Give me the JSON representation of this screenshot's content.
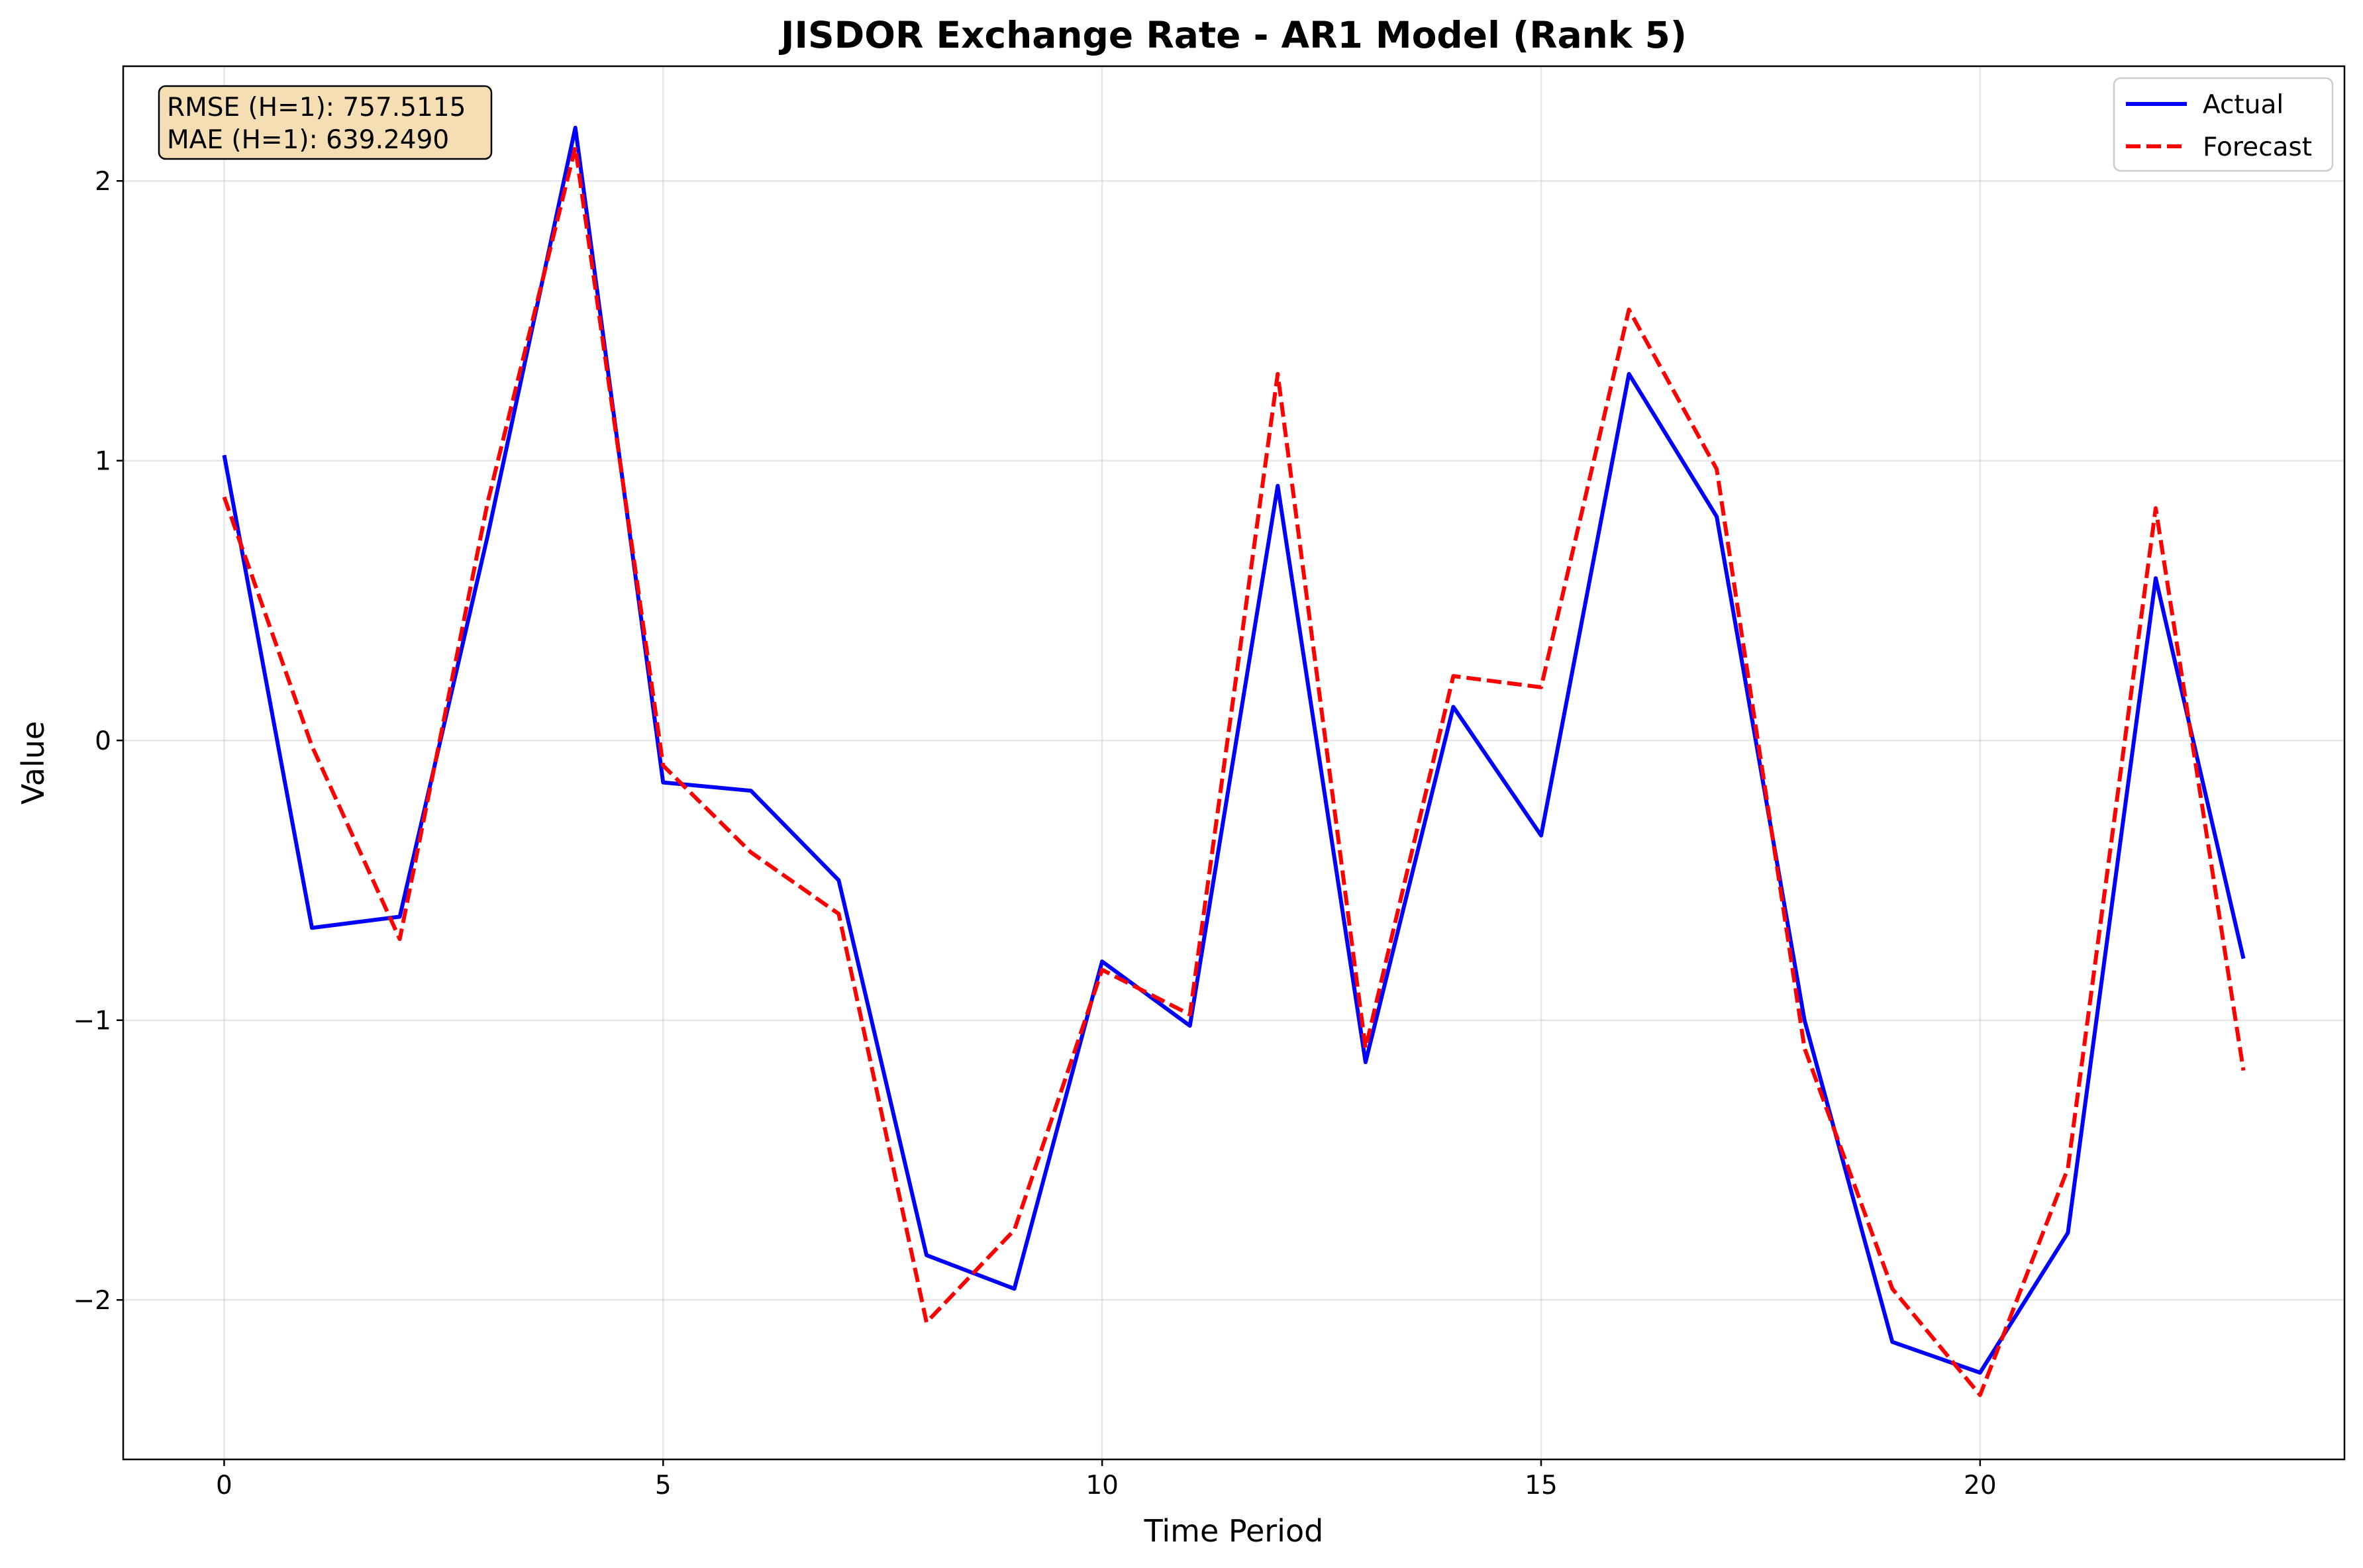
{
  "chart_data": {
    "type": "line",
    "title": "JISDOR Exchange Rate - AR1 Model (Rank 5)",
    "xlabel": "Time Period",
    "ylabel": "Value",
    "xlim": [
      -1.15,
      24.15
    ],
    "ylim": [
      -2.57,
      2.41
    ],
    "x_ticks": [
      0,
      5,
      10,
      15,
      20
    ],
    "y_ticks": [
      -2,
      -1,
      0,
      1,
      2
    ],
    "y_tick_labels": [
      "−2",
      "−1",
      "0",
      "1",
      "2"
    ],
    "grid": true,
    "legend_position": "top-right",
    "x": [
      0,
      1,
      2,
      3,
      4,
      5,
      6,
      7,
      8,
      9,
      10,
      11,
      12,
      13,
      14,
      15,
      16,
      17,
      18,
      19,
      20,
      21,
      22,
      23
    ],
    "series": [
      {
        "name": "Actual",
        "color": "#0000ff",
        "style": "solid",
        "values": [
          1.02,
          -0.67,
          -0.63,
          0.73,
          2.19,
          -0.15,
          -0.18,
          -0.5,
          -1.84,
          -1.96,
          -0.79,
          -1.02,
          0.91,
          -1.15,
          0.12,
          -0.34,
          1.31,
          0.8,
          -1.0,
          -2.15,
          -2.26,
          -1.76,
          0.58,
          -0.78
        ]
      },
      {
        "name": "Forecast",
        "color": "#ff0000",
        "style": "dashed",
        "values": [
          0.87,
          -0.02,
          -0.71,
          0.85,
          2.12,
          -0.09,
          -0.4,
          -0.62,
          -2.08,
          -1.75,
          -0.82,
          -0.98,
          1.31,
          -1.1,
          0.23,
          0.19,
          1.54,
          0.97,
          -1.1,
          -1.96,
          -2.34,
          -1.53,
          0.83,
          -1.18
        ]
      }
    ],
    "annotations": {
      "rmse": "RMSE (H=1): 757.5115",
      "mae": "MAE (H=1): 639.2490",
      "box_fill": "#f5deb3"
    }
  }
}
